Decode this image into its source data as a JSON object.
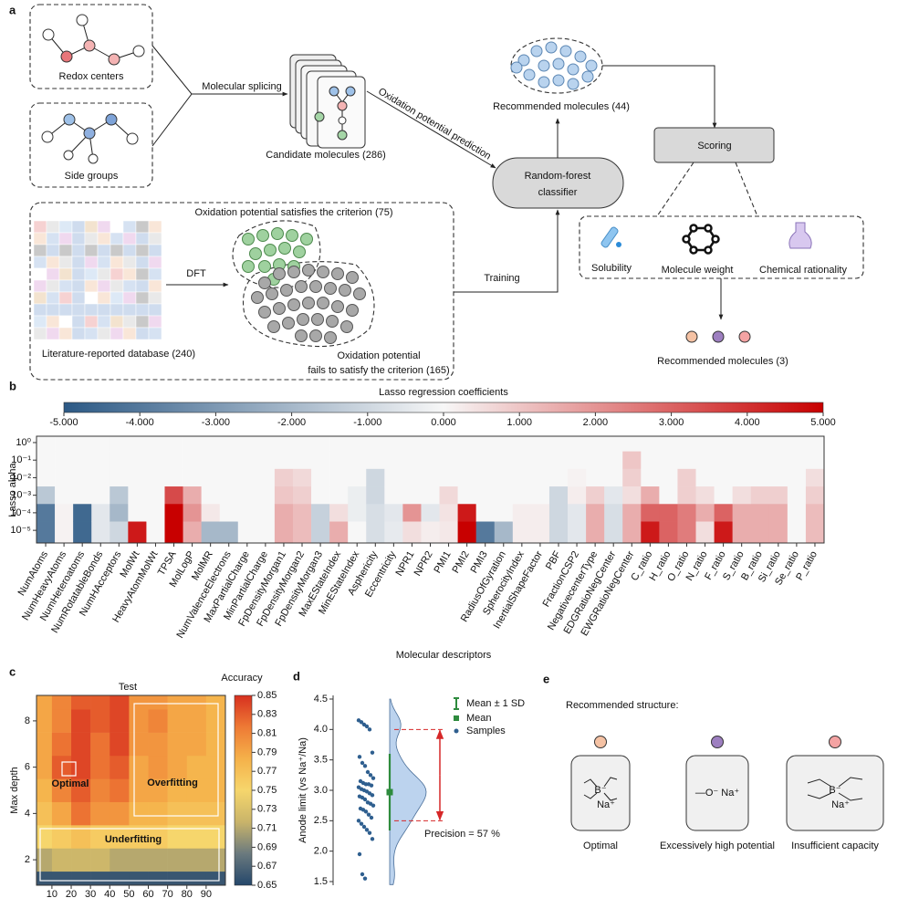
{
  "diagram_a": {
    "label": "a",
    "redox_centers": "Redox centers",
    "side_groups": "Side groups",
    "splicing": "Molecular splicing",
    "candidates": "Candidate molecules (286)",
    "prediction": "Oxidation potential prediction",
    "classifier": [
      "Random-forest",
      "classifier"
    ],
    "recommended_44": "Recommended molecules (44)",
    "scoring": "Scoring",
    "criteria": [
      "Solubility",
      "Molecule weight",
      "Chemical rationality"
    ],
    "recommended_3": "Recommended molecules (3)",
    "satisfies": "Oxidation potential satisfies the criterion (75)",
    "dft": "DFT",
    "training": "Training",
    "database": "Literature-reported database (240)",
    "fails": [
      "Oxidation potential",
      "fails to satisfy the criterion (165)"
    ]
  },
  "chart_data": [
    {
      "type": "heatmap",
      "panel": "b",
      "title": "Lasso regression coefficients",
      "x_label": "Molecular descriptors",
      "y_label": "Lasso alpha",
      "categories": [
        "NumAtoms",
        "NumHeavyAtoms",
        "NumHeteroatoms",
        "NumRotatableBonds",
        "NumHAcceptors",
        "MolWt",
        "HeavyAtomMolWt",
        "TPSA",
        "MolLogP",
        "MolMR",
        "NumValenceElectrons",
        "MaxPartialCharge",
        "MinPartialCharge",
        "FpDensityMorgan1",
        "FpDensityMorgan2",
        "FpDensityMorgan3",
        "MaxEStateIndex",
        "MinEStateIndex",
        "Asphericity",
        "Eccentricity",
        "NPR1",
        "NPR2",
        "PMI1",
        "PMI2",
        "PMI3",
        "RadiusOfGyration",
        "SpherocityIndex",
        "InertialShapeFactor",
        "PBF",
        "FractionCSP2",
        "NegativecenterType",
        "EDGRatioNegCenter",
        "EWGRatioNegCenter",
        "C_ratio",
        "H_ratio",
        "O_ratio",
        "N_ratio",
        "F_ratio",
        "S_ratio",
        "B_ratio",
        "Si_ratio",
        "Se_ratio",
        "P_ratio"
      ],
      "y": [
        1,
        0.1,
        0.01,
        0.001,
        0.0001,
        1e-05
      ],
      "log_y": true,
      "ylim": [
        1.9e-06,
        2.3
      ],
      "yticks": [
        {
          "value": 1,
          "label": "10⁰"
        },
        {
          "value": 0.1,
          "label": "10⁻¹"
        },
        {
          "value": 0.01,
          "label": "10⁻²"
        },
        {
          "value": 0.001,
          "label": "10⁻³"
        },
        {
          "value": 0.0001,
          "label": "10⁻⁴"
        },
        {
          "value": 1e-05,
          "label": "10⁻⁵"
        }
      ],
      "values": [
        [
          0,
          0,
          0,
          -1.5,
          -4,
          -4
        ],
        [
          0,
          0,
          0,
          0,
          0.1,
          0.1
        ],
        [
          0,
          0,
          0,
          0,
          -4.5,
          -4.5
        ],
        [
          0,
          0,
          0,
          0,
          -0.5,
          -0.5
        ],
        [
          0,
          0,
          0,
          -1.5,
          -2,
          -1
        ],
        [
          0,
          0,
          0,
          0,
          0,
          4.5
        ],
        [
          0,
          0,
          0,
          0,
          0,
          0
        ],
        [
          0,
          0,
          0,
          3.5,
          5,
          5
        ],
        [
          0,
          0,
          0,
          1.5,
          2,
          1.5
        ],
        [
          0,
          0,
          0,
          0,
          0.3,
          -2
        ],
        [
          0,
          0,
          0,
          0,
          0,
          -2
        ],
        [
          0,
          0,
          0,
          0,
          0,
          0
        ],
        [
          0,
          0,
          0,
          0,
          0,
          0
        ],
        [
          0,
          0,
          0.8,
          1,
          1.5,
          1.5
        ],
        [
          0,
          0,
          0.6,
          0.8,
          1.2,
          1.2
        ],
        [
          0,
          0,
          0,
          0,
          -1.2,
          -1.2
        ],
        [
          0,
          0,
          0,
          0,
          0.5,
          1.5
        ],
        [
          0,
          0,
          0,
          -0.3,
          -0.3,
          0
        ],
        [
          0,
          0,
          -1,
          -1,
          -0.8,
          -0.8
        ],
        [
          0,
          0,
          0,
          0,
          -0.5,
          -0.4
        ],
        [
          0,
          0,
          0,
          0,
          2,
          0.5
        ],
        [
          0,
          0,
          0,
          0,
          -0.5,
          0.2
        ],
        [
          0,
          0,
          0,
          0.6,
          0.4,
          0.3
        ],
        [
          0,
          0,
          0,
          0,
          4.5,
          5
        ],
        [
          0,
          0,
          0,
          0,
          0,
          -4
        ],
        [
          0,
          0,
          0,
          0,
          0,
          -2
        ],
        [
          0,
          0,
          0,
          0,
          0.2,
          0.2
        ],
        [
          0,
          0,
          0,
          0,
          0.2,
          0.2
        ],
        [
          0,
          0,
          0,
          -1,
          -1,
          -1
        ],
        [
          0,
          0,
          0.1,
          0.2,
          -0.5,
          -0.5
        ],
        [
          0,
          0,
          0,
          0.8,
          1.5,
          1.5
        ],
        [
          0,
          0,
          0,
          -0.5,
          -0.8,
          -0.8
        ],
        [
          0,
          1,
          0.8,
          0.5,
          1.5,
          1.5
        ],
        [
          0,
          0,
          0,
          1.5,
          3,
          4.5
        ],
        [
          0,
          0,
          0,
          0,
          3,
          3
        ],
        [
          0,
          0,
          0.8,
          0.8,
          2.5,
          2.5
        ],
        [
          0,
          0,
          0,
          0.5,
          1.5,
          0.5
        ],
        [
          0,
          0,
          0,
          0,
          3,
          4.5
        ],
        [
          0,
          0,
          0,
          0.5,
          1.5,
          1.5
        ],
        [
          0,
          0,
          0,
          0.8,
          1.5,
          1.5
        ],
        [
          0,
          0,
          0,
          0.8,
          1.5,
          1.5
        ],
        [
          0,
          0,
          0,
          0,
          0,
          0
        ],
        [
          0,
          0,
          0.5,
          0.8,
          1.2,
          1.2
        ]
      ],
      "colorbar": {
        "lim": [
          -5,
          5
        ],
        "colors": [
          "#2c5985",
          "#f7f7f7",
          "#c80000"
        ],
        "ticks": [
          {
            "value": -5,
            "label": "-5.000"
          },
          {
            "value": -4,
            "label": "-4.000"
          },
          {
            "value": -3,
            "label": "-3.000"
          },
          {
            "value": -2,
            "label": "-2.000"
          },
          {
            "value": -1,
            "label": "-1.000"
          },
          {
            "value": 0,
            "label": "0.000"
          },
          {
            "value": 1,
            "label": "1.000"
          },
          {
            "value": 2,
            "label": "2.000"
          },
          {
            "value": 3,
            "label": "3.000"
          },
          {
            "value": 4,
            "label": "4.000"
          },
          {
            "value": 5,
            "label": "5.000"
          }
        ]
      }
    },
    {
      "type": "heatmap",
      "panel": "c",
      "title": "Test",
      "y_label": "Max depth",
      "x": [
        5,
        15,
        25,
        35,
        45,
        55,
        65,
        75,
        85,
        95
      ],
      "y": [
        1,
        2,
        3,
        4,
        5,
        6,
        7,
        8,
        9
      ],
      "xlim": [
        2,
        100
      ],
      "ylim": [
        0.9,
        9.1
      ],
      "xticks": [
        10,
        20,
        30,
        40,
        50,
        60,
        70,
        80,
        90
      ],
      "yticks": [
        2,
        4,
        6,
        8
      ],
      "values": [
        [
          0.66,
          0.66,
          0.66,
          0.66,
          0.66,
          0.66,
          0.66,
          0.66,
          0.66,
          0.66
        ],
        [
          0.71,
          0.72,
          0.72,
          0.72,
          0.71,
          0.71,
          0.71,
          0.71,
          0.71,
          0.71
        ],
        [
          0.75,
          0.76,
          0.77,
          0.76,
          0.76,
          0.76,
          0.76,
          0.75,
          0.75,
          0.75
        ],
        [
          0.77,
          0.79,
          0.82,
          0.8,
          0.8,
          0.78,
          0.78,
          0.77,
          0.77,
          0.77
        ],
        [
          0.78,
          0.81,
          0.83,
          0.81,
          0.82,
          0.79,
          0.79,
          0.78,
          0.78,
          0.78
        ],
        [
          0.79,
          0.83,
          0.84,
          0.82,
          0.83,
          0.79,
          0.8,
          0.79,
          0.78,
          0.78
        ],
        [
          0.79,
          0.82,
          0.84,
          0.82,
          0.84,
          0.8,
          0.8,
          0.79,
          0.79,
          0.78
        ],
        [
          0.79,
          0.81,
          0.84,
          0.83,
          0.84,
          0.8,
          0.81,
          0.79,
          0.79,
          0.78
        ],
        [
          0.79,
          0.81,
          0.83,
          0.83,
          0.84,
          0.8,
          0.8,
          0.79,
          0.79,
          0.78
        ]
      ],
      "annotations": [
        "Optimal",
        "Overfitting",
        "Underfitting"
      ],
      "colorbar": {
        "title": "Accuracy",
        "lim": [
          0.65,
          0.85
        ],
        "colors": [
          "#24476b",
          "#6b7a7e",
          "#c9b46a",
          "#f6d66c",
          "#f5b14a",
          "#ee7a35",
          "#d7301f"
        ],
        "ticks": [
          0.65,
          0.67,
          0.69,
          0.71,
          0.73,
          0.75,
          0.77,
          0.79,
          0.81,
          0.83,
          0.85
        ]
      }
    },
    {
      "type": "violin",
      "panel": "d",
      "y_label": "Anode limit (vs Na⁺/Na)",
      "ylim": [
        1.44,
        4.56
      ],
      "yticks": [
        1.5,
        {
          "value": 2,
          "label": "2.0"
        },
        2.5,
        {
          "value": 3,
          "label": "3.0"
        },
        3.5,
        {
          "value": 4,
          "label": "4.0"
        },
        4.5
      ],
      "samples": [
        4.15,
        4.12,
        4.08,
        4.05,
        4.0,
        3.62,
        3.55,
        3.45,
        3.4,
        3.3,
        3.25,
        3.2,
        3.15,
        3.12,
        3.1,
        3.1,
        3.08,
        3.05,
        3.02,
        3.0,
        2.98,
        2.95,
        2.92,
        2.9,
        2.88,
        2.85,
        2.8,
        2.78,
        2.75,
        2.7,
        2.68,
        2.65,
        2.6,
        2.55,
        2.5,
        2.45,
        2.4,
        2.35,
        2.3,
        2.2,
        1.95,
        1.62,
        1.55
      ],
      "mean": 2.97,
      "sd": 0.63,
      "thresholds": [
        4.0,
        2.5
      ],
      "color": "#bcd3ee",
      "mean_color": "#2e8b3e",
      "sample_color": "#2f5f8f",
      "threshold_color": "#d62728",
      "annotation": "Precision = 57 %",
      "legend": [
        "Mean ± 1 SD",
        "Mean",
        "Samples"
      ]
    }
  ],
  "diagram_e": {
    "label": "e",
    "heading": "Recommended structure:",
    "candidates": [
      {
        "caption": "Optimal",
        "color": "#f5c2a4",
        "structure": [
          "B⁻",
          "Na⁺"
        ]
      },
      {
        "caption": "Excessively high potential",
        "color": "#9d7fc0",
        "structure": [
          "—O⁻ Na⁺"
        ]
      },
      {
        "caption": "Insufficient capacity",
        "color": "#f4a3a3",
        "structure": [
          "B⁻",
          "Na⁺"
        ]
      }
    ]
  }
}
